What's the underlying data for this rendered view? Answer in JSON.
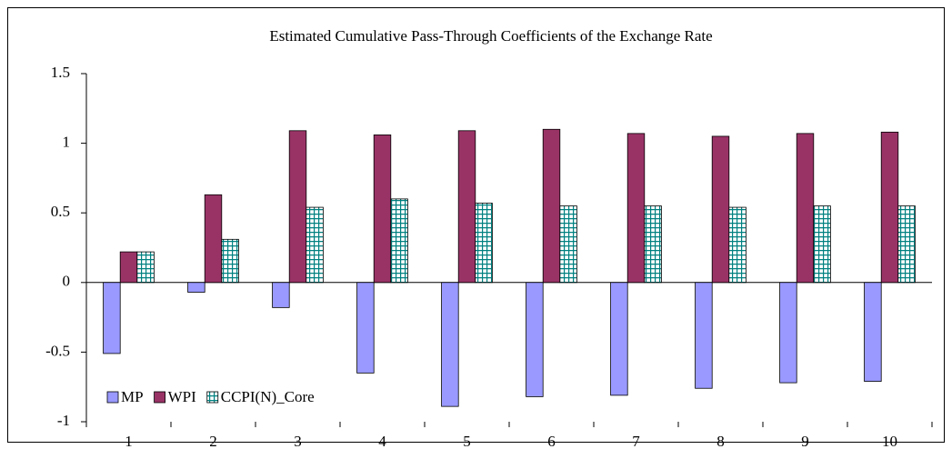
{
  "chart_data": {
    "type": "bar",
    "title": "Estimated Cumulative Pass-Through Coefficients of the Exchange Rate",
    "categories": [
      "1",
      "2",
      "3",
      "4",
      "5",
      "6",
      "7",
      "8",
      "9",
      "10"
    ],
    "series": [
      {
        "name": "MP",
        "color": "#9999ff",
        "values": [
          -0.51,
          -0.07,
          -0.18,
          -0.65,
          -0.89,
          -0.82,
          -0.81,
          -0.76,
          -0.72,
          -0.71
        ]
      },
      {
        "name": "WPI",
        "color": "#993366",
        "values": [
          0.22,
          0.63,
          1.09,
          1.06,
          1.09,
          1.1,
          1.07,
          1.05,
          1.07,
          1.08
        ]
      },
      {
        "name": "CCPI(N)_Core",
        "color": "#008080",
        "values": [
          0.22,
          0.31,
          0.54,
          0.6,
          0.57,
          0.55,
          0.55,
          0.54,
          0.55,
          0.55
        ]
      }
    ],
    "ylim": [
      -1,
      1.5
    ],
    "yticks": [
      -1,
      -0.5,
      0,
      0.5,
      1,
      1.5
    ],
    "legend": "lower left"
  }
}
